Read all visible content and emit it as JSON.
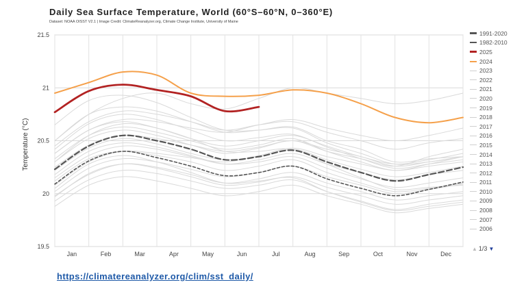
{
  "source_link": "https://climatereanalyzer.org/clim/sst_daily/",
  "pager": {
    "label": "1/3",
    "up_icon": "triangle-up-icon",
    "down_icon": "triangle-down-icon"
  },
  "chart_data": {
    "type": "line",
    "title": "Daily Sea Surface Temperature, World (60°S–60°N, 0–360°E)",
    "subtitle": "Dataset: NOAA OISST V2.1 | Image Credit: ClimateReanalyzer.org, Climate Change Institute, University of Maine",
    "xlabel": "",
    "ylabel": "Temperature (°C)",
    "ylim": [
      19.5,
      21.5
    ],
    "yticks": [
      19.5,
      20,
      20.5,
      21,
      21.5
    ],
    "xticks": [
      "Jan",
      "Feb",
      "Mar",
      "Apr",
      "May",
      "Jun",
      "Jul",
      "Aug",
      "Sep",
      "Oct",
      "Nov",
      "Dec"
    ],
    "grid": true,
    "legend_position": "right",
    "colors": {
      "year_2025": "#b22222",
      "year_2024": "#f5a04a",
      "mean_1991_2020": "#555555",
      "mean_1982_2010": "#555555",
      "other_years": "#d9d9d9"
    },
    "legend": [
      "1991-2020",
      "1982-2010",
      "2025",
      "2024",
      "2023",
      "2022",
      "2021",
      "2020",
      "2019",
      "2018",
      "2017",
      "2016",
      "2015",
      "2014",
      "2013",
      "2012",
      "2011",
      "2010",
      "2009",
      "2008",
      "2007",
      "2006"
    ],
    "months": [
      "Jan 1",
      "Feb 1",
      "Mar 1",
      "Apr 1",
      "May 1",
      "Jun 1",
      "Jul 1",
      "Aug 1",
      "Sep 1",
      "Oct 1",
      "Nov 1",
      "Dec 1",
      "Dec 31"
    ],
    "series": [
      {
        "name": "2024",
        "style": "orange",
        "values": [
          20.95,
          21.05,
          21.15,
          21.12,
          20.95,
          20.92,
          20.93,
          20.98,
          20.95,
          20.85,
          20.72,
          20.67,
          20.72
        ]
      },
      {
        "name": "2025",
        "style": "red",
        "values": [
          20.77,
          20.97,
          21.03,
          20.98,
          20.92,
          20.78,
          20.82
        ]
      },
      {
        "name": "1991-2020",
        "style": "dashed-dark",
        "values": [
          20.23,
          20.45,
          20.55,
          20.5,
          20.42,
          20.32,
          20.35,
          20.41,
          20.3,
          20.2,
          20.12,
          20.18,
          20.25
        ]
      },
      {
        "name": "1982-2010",
        "style": "dashed-dark2",
        "values": [
          20.09,
          20.31,
          20.4,
          20.34,
          20.26,
          20.17,
          20.2,
          20.26,
          20.14,
          20.05,
          19.98,
          20.04,
          20.11
        ]
      },
      {
        "name": "2023",
        "style": "gray",
        "values": [
          20.5,
          20.75,
          20.9,
          20.95,
          20.85,
          20.8,
          20.9,
          21.0,
          20.95,
          20.9,
          20.85,
          20.88,
          20.95
        ]
      },
      {
        "name": "2022",
        "style": "gray",
        "values": [
          20.38,
          20.6,
          20.68,
          20.62,
          20.52,
          20.45,
          20.5,
          20.55,
          20.45,
          20.35,
          20.28,
          20.32,
          20.38
        ]
      },
      {
        "name": "2021",
        "style": "gray",
        "values": [
          20.33,
          20.55,
          20.63,
          20.58,
          20.5,
          20.42,
          20.46,
          20.52,
          20.4,
          20.3,
          20.22,
          20.28,
          20.35
        ]
      },
      {
        "name": "2020",
        "style": "gray",
        "values": [
          20.5,
          20.75,
          20.82,
          20.78,
          20.68,
          20.58,
          20.6,
          20.63,
          20.5,
          20.42,
          20.3,
          20.33,
          20.35
        ]
      },
      {
        "name": "2019",
        "style": "gray",
        "values": [
          20.45,
          20.68,
          20.78,
          20.75,
          20.68,
          20.6,
          20.65,
          20.68,
          20.58,
          20.5,
          20.42,
          20.48,
          20.52
        ]
      },
      {
        "name": "2018",
        "style": "gray",
        "values": [
          20.3,
          20.52,
          20.6,
          20.55,
          20.46,
          20.38,
          20.43,
          20.5,
          20.4,
          20.33,
          20.26,
          20.35,
          20.42
        ]
      },
      {
        "name": "2017",
        "style": "gray",
        "values": [
          20.42,
          20.66,
          20.75,
          20.7,
          20.6,
          20.5,
          20.53,
          20.56,
          20.44,
          20.33,
          20.24,
          20.28,
          20.32
        ]
      },
      {
        "name": "2016",
        "style": "gray",
        "values": [
          20.65,
          20.88,
          20.93,
          20.86,
          20.72,
          20.6,
          20.6,
          20.62,
          20.48,
          20.38,
          20.28,
          20.3,
          20.35
        ]
      },
      {
        "name": "2015",
        "style": "gray",
        "values": [
          20.38,
          20.6,
          20.7,
          20.68,
          20.62,
          20.58,
          20.65,
          20.7,
          20.62,
          20.55,
          20.5,
          20.55,
          20.62
        ]
      },
      {
        "name": "2014",
        "style": "gray",
        "values": [
          20.25,
          20.46,
          20.55,
          20.52,
          20.46,
          20.4,
          20.44,
          20.5,
          20.42,
          20.35,
          20.26,
          20.3,
          20.35
        ]
      },
      {
        "name": "2013",
        "style": "gray",
        "values": [
          20.22,
          20.43,
          20.52,
          20.47,
          20.38,
          20.32,
          20.35,
          20.42,
          20.32,
          20.23,
          20.16,
          20.2,
          20.26
        ]
      },
      {
        "name": "2012",
        "style": "gray",
        "values": [
          20.15,
          20.36,
          20.45,
          20.42,
          20.35,
          20.28,
          20.32,
          20.38,
          20.28,
          20.2,
          20.13,
          20.18,
          20.22
        ]
      },
      {
        "name": "2011",
        "style": "gray",
        "values": [
          20.12,
          20.33,
          20.4,
          20.36,
          20.3,
          20.22,
          20.26,
          20.32,
          20.2,
          20.1,
          20.02,
          20.05,
          20.1
        ]
      },
      {
        "name": "2010",
        "style": "gray",
        "values": [
          20.3,
          20.55,
          20.66,
          20.62,
          20.52,
          20.4,
          20.4,
          20.42,
          20.28,
          20.15,
          20.04,
          20.06,
          20.08
        ]
      },
      {
        "name": "2009",
        "style": "gray",
        "values": [
          20.08,
          20.3,
          20.4,
          20.38,
          20.34,
          20.3,
          20.36,
          20.43,
          20.35,
          20.28,
          20.22,
          20.26,
          20.3
        ]
      },
      {
        "name": "2008",
        "style": "gray",
        "values": [
          19.98,
          20.18,
          20.28,
          20.25,
          20.18,
          20.1,
          20.14,
          20.2,
          20.1,
          20.02,
          19.94,
          19.98,
          20.02
        ]
      },
      {
        "name": "2007",
        "style": "gray",
        "values": [
          20.05,
          20.28,
          20.36,
          20.3,
          20.2,
          20.1,
          20.12,
          20.15,
          20.02,
          19.92,
          19.84,
          19.88,
          19.92
        ]
      },
      {
        "name": "2006",
        "style": "gray",
        "values": [
          20.02,
          20.24,
          20.33,
          20.3,
          20.23,
          20.16,
          20.2,
          20.26,
          20.16,
          20.08,
          20.0,
          20.04,
          20.09
        ]
      },
      {
        "name": "",
        "style": "gray",
        "values": [
          19.93,
          20.13,
          20.22,
          20.19,
          20.12,
          20.05,
          20.08,
          20.13,
          20.02,
          19.93,
          19.85,
          19.9,
          19.94
        ]
      },
      {
        "name": "",
        "style": "gray",
        "values": [
          19.88,
          20.08,
          20.16,
          20.12,
          20.05,
          19.98,
          20.02,
          20.08,
          19.98,
          19.9,
          19.82,
          19.86,
          19.9
        ]
      },
      {
        "name": "",
        "style": "gray",
        "values": [
          19.97,
          20.19,
          20.28,
          20.24,
          20.16,
          20.08,
          20.11,
          20.16,
          20.06,
          19.98,
          19.9,
          19.94,
          19.98
        ]
      },
      {
        "name": "",
        "style": "gray",
        "values": [
          20.18,
          20.4,
          20.48,
          20.44,
          20.36,
          20.28,
          20.3,
          20.35,
          20.24,
          20.14,
          20.06,
          20.1,
          20.15
        ]
      }
    ]
  }
}
